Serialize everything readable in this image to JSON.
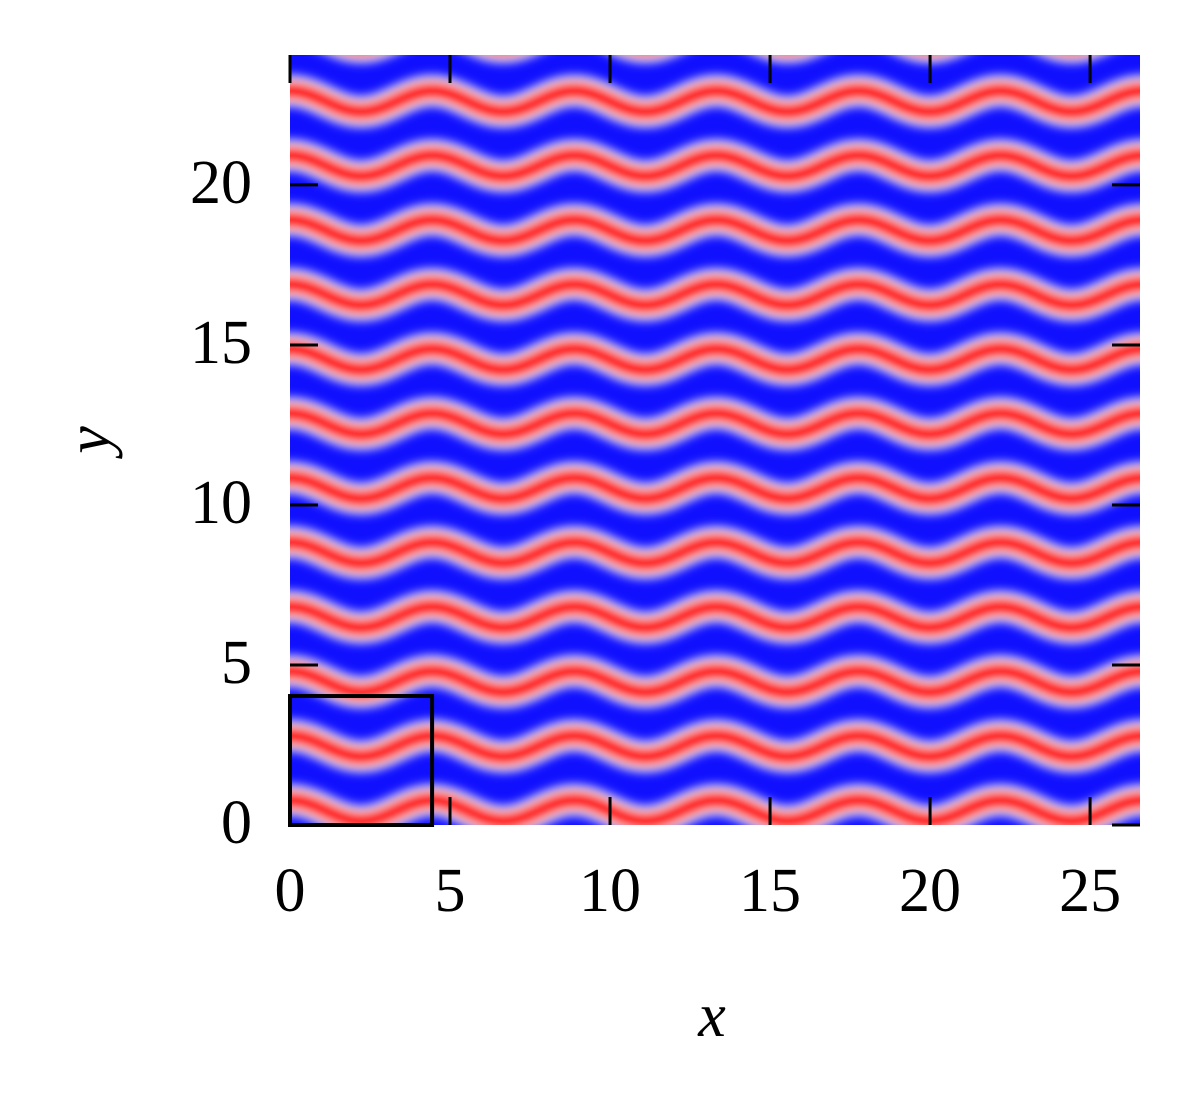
{
  "chart_data": {
    "type": "image",
    "xlabel": "x",
    "ylabel": "y",
    "xlim": [
      0,
      26.56
    ],
    "ylim": [
      0,
      24.06
    ],
    "xticks": [
      0,
      5,
      10,
      15,
      20,
      25
    ],
    "yticks": [
      0,
      5,
      10,
      15,
      20
    ],
    "box": {
      "x": [
        0,
        4.44
      ],
      "y": [
        0,
        4.03
      ],
      "color": "#000000"
    }
  }
}
